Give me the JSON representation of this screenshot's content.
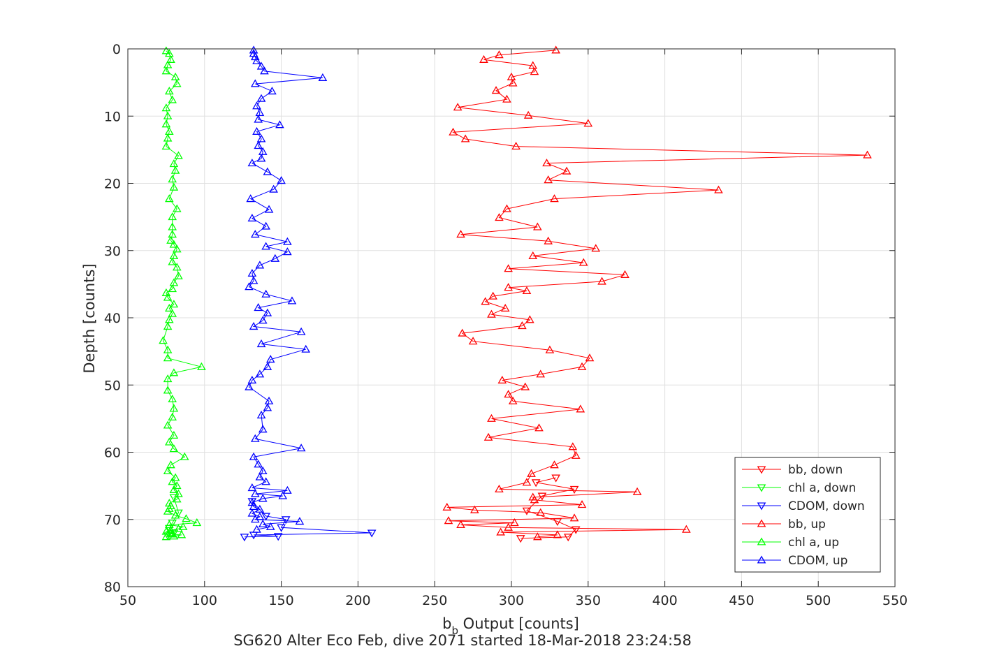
{
  "chart_data": {
    "type": "line",
    "title": "SG620 Alter Eco Feb, dive 2071 started 18-Mar-2018 23:24:58",
    "xlabel_main": "b",
    "xlabel_sub": "b",
    "xlabel_rest": " Output [counts]",
    "ylabel": "Depth [counts]",
    "xlim": [
      50,
      550
    ],
    "ylim": [
      0,
      80
    ],
    "y_reversed": true,
    "grid": true,
    "legend_position": "bottom-right",
    "xticks": [
      "50",
      "100",
      "150",
      "200",
      "250",
      "300",
      "350",
      "400",
      "450",
      "500",
      "550"
    ],
    "yticks": [
      "0",
      "10",
      "20",
      "30",
      "40",
      "50",
      "60",
      "70",
      "80"
    ],
    "series": [
      {
        "name": "bb, down",
        "color": "#ff0000",
        "marker": "triangle-down",
        "x": [
          329,
          316,
          341,
          320,
          310,
          330,
          342,
          337,
          306
        ],
        "y": [
          63.8,
          64.5,
          65.5,
          66.5,
          68.7,
          70.3,
          71.5,
          72.6,
          72.8
        ]
      },
      {
        "name": "chl a, down",
        "color": "#00ff00",
        "marker": "triangle-down",
        "x": [
          80,
          83,
          79,
          77,
          80,
          76
        ],
        "y": [
          66.7,
          69.0,
          70.5,
          71.3,
          72.0,
          72.4
        ]
      },
      {
        "name": "CDOM, down",
        "color": "#0000ff",
        "marker": "triangle-down",
        "x": [
          131,
          140,
          153,
          150,
          209,
          132,
          148,
          126
        ],
        "y": [
          67.3,
          69.5,
          70.0,
          71.2,
          72.0,
          72.3,
          72.5,
          72.6
        ]
      },
      {
        "name": "bb, up",
        "color": "#ff0000",
        "marker": "triangle-up",
        "x": [
          329,
          292,
          282,
          314,
          315,
          300,
          301,
          290,
          297,
          265,
          311,
          350,
          262,
          270,
          303,
          532,
          323,
          336,
          324,
          435,
          328,
          297,
          292,
          317,
          267,
          324,
          355,
          314,
          347,
          298,
          374,
          359,
          298,
          310,
          288,
          283,
          296,
          287,
          312,
          307,
          268,
          275,
          325,
          351,
          346,
          319,
          294,
          309,
          298,
          301,
          345,
          287,
          318,
          285,
          340,
          342,
          328,
          313,
          310,
          292,
          382,
          314,
          315,
          346,
          258,
          276,
          319,
          341,
          259,
          302,
          267,
          298,
          414,
          293,
          330,
          317
        ],
        "y": [
          0.2,
          0.9,
          1.6,
          2.5,
          3.4,
          4.2,
          5.1,
          6.2,
          7.5,
          8.7,
          9.9,
          11.1,
          12.4,
          13.4,
          14.5,
          15.8,
          17.0,
          18.2,
          19.5,
          21.0,
          22.3,
          23.8,
          25.1,
          26.5,
          27.6,
          28.6,
          29.7,
          30.8,
          31.8,
          32.7,
          33.6,
          34.6,
          35.5,
          36.0,
          36.8,
          37.6,
          38.6,
          39.5,
          40.3,
          41.2,
          42.3,
          43.5,
          44.8,
          46.0,
          47.3,
          48.4,
          49.3,
          50.3,
          51.4,
          52.4,
          53.6,
          55.0,
          56.4,
          57.8,
          59.2,
          60.5,
          61.9,
          63.2,
          64.5,
          65.5,
          65.9,
          66.7,
          67.1,
          67.8,
          68.2,
          68.6,
          69.0,
          69.8,
          70.2,
          70.5,
          70.8,
          71.2,
          71.5,
          71.9,
          72.3,
          72.6
        ]
      },
      {
        "name": "chl a, up",
        "color": "#00ff00",
        "marker": "triangle-up",
        "x": [
          75,
          77,
          78,
          76,
          75,
          81,
          82,
          77,
          79,
          75,
          76,
          75,
          77,
          76,
          75,
          83,
          80,
          81,
          79,
          80,
          77,
          82,
          79,
          79,
          79,
          78,
          80,
          82,
          80,
          79,
          82,
          83,
          80,
          79,
          75,
          76,
          80,
          77,
          79,
          77,
          76,
          73,
          76,
          76,
          98,
          80,
          76,
          76,
          79,
          80,
          79,
          76,
          80,
          77,
          80,
          87,
          78,
          76,
          81,
          79,
          82,
          80,
          83,
          82,
          77,
          78,
          77,
          76,
          81,
          88,
          95,
          77,
          86,
          83,
          78,
          75,
          78,
          79,
          85,
          80,
          75
        ],
        "y": [
          0.3,
          0.7,
          1.6,
          2.4,
          3.3,
          4.2,
          5.2,
          6.3,
          7.6,
          8.8,
          10.0,
          11.2,
          12.3,
          13.3,
          14.5,
          15.9,
          17.1,
          18.1,
          19.4,
          20.6,
          22.3,
          23.8,
          25.0,
          26.5,
          27.6,
          28.5,
          29.1,
          29.8,
          30.8,
          31.7,
          32.5,
          33.8,
          34.8,
          35.7,
          36.3,
          37.0,
          38.0,
          38.6,
          39.4,
          40.3,
          41.3,
          43.4,
          44.8,
          46.0,
          47.3,
          48.2,
          49.1,
          50.8,
          52.1,
          53.5,
          54.8,
          56.0,
          57.5,
          58.5,
          59.5,
          60.7,
          61.9,
          62.8,
          63.8,
          64.4,
          65.0,
          65.6,
          66.2,
          67.0,
          67.6,
          68.0,
          68.4,
          68.8,
          69.4,
          69.9,
          70.5,
          70.8,
          71.1,
          71.4,
          71.6,
          71.8,
          72.0,
          72.2,
          72.3,
          72.5,
          72.6
        ]
      },
      {
        "name": "CDOM, up",
        "color": "#0000ff",
        "marker": "triangle-up",
        "x": [
          132,
          132,
          133,
          134,
          137,
          139,
          177,
          133,
          144,
          137,
          134,
          136,
          135,
          149,
          134,
          137,
          135,
          138,
          137,
          131,
          141,
          150,
          145,
          130,
          142,
          131,
          140,
          133,
          154,
          140,
          154,
          146,
          136,
          131,
          132,
          129,
          140,
          157,
          135,
          141,
          138,
          132,
          163,
          137,
          166,
          143,
          141,
          136,
          131,
          129,
          142,
          141,
          137,
          138,
          133,
          163,
          132,
          135,
          138,
          136,
          140,
          131,
          154,
          133,
          151,
          138,
          131,
          132,
          136,
          131,
          136,
          133,
          162,
          138,
          143,
          134
        ],
        "y": [
          0.2,
          0.7,
          1.2,
          1.8,
          2.6,
          3.3,
          4.3,
          5.2,
          6.3,
          7.4,
          8.5,
          9.5,
          10.5,
          11.3,
          12.3,
          13.4,
          14.4,
          15.3,
          16.3,
          17.0,
          18.3,
          19.6,
          20.9,
          22.3,
          23.9,
          25.2,
          26.4,
          27.6,
          28.7,
          29.4,
          30.2,
          31.2,
          32.2,
          33.4,
          34.5,
          35.4,
          36.5,
          37.5,
          38.5,
          39.3,
          40.4,
          41.3,
          42.1,
          43.9,
          44.7,
          46.2,
          47.3,
          48.4,
          49.3,
          50.3,
          52.4,
          53.4,
          54.5,
          56.6,
          58.0,
          59.4,
          60.7,
          61.8,
          62.8,
          63.7,
          64.4,
          65.3,
          65.7,
          66.2,
          66.5,
          66.9,
          67.5,
          68.1,
          68.5,
          69.1,
          69.6,
          70.0,
          70.3,
          70.7,
          71.1,
          71.5
        ]
      }
    ]
  }
}
